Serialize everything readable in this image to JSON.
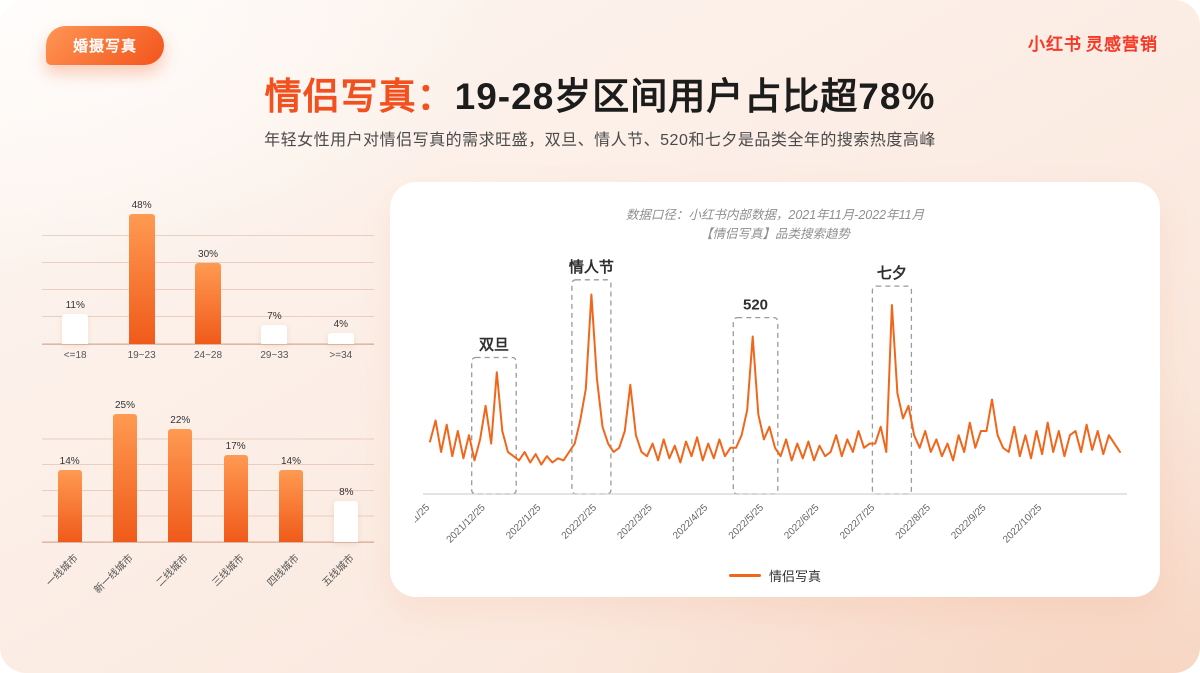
{
  "badge": {
    "label": "婚摄写真"
  },
  "logo": {
    "brand": "小红书",
    "suffix": "灵感营销"
  },
  "title": {
    "highlight": "情侣写真：",
    "rest": "19-28岁区间用户占比超78%"
  },
  "subtitle": "年轻女性用户对情侣写真的需求旺盛，双旦、情人节、520和七夕是品类全年的搜索热度高峰",
  "colors": {
    "accent": "#F2541B",
    "brand_red": "#F83726",
    "bar_orange_top": "#FF9A52",
    "bar_orange_bottom": "#F05A1A",
    "bar_white": "#FFFFFF",
    "line": "#F2661C"
  },
  "card": {
    "caption_line1": "数据口径：小红书内部数据，2021年11月-2022年11月",
    "caption_line2": "【情侣写真】品类搜索趋势",
    "legend": "情侣写真"
  },
  "chart_data": [
    {
      "type": "bar",
      "name": "age-distribution",
      "categories": [
        "<=18",
        "19~23",
        "24~28",
        "29~33",
        ">=34"
      ],
      "values": [
        11,
        48,
        30,
        7,
        4
      ],
      "value_labels": [
        "11%",
        "48%",
        "30%",
        "7%",
        "4%"
      ],
      "highlighted": [
        false,
        true,
        true,
        false,
        false
      ],
      "ylim": [
        0,
        50
      ],
      "grid": true
    },
    {
      "type": "bar",
      "name": "city-tier-distribution",
      "categories": [
        "一线城市",
        "新一线城市",
        "二线城市",
        "三线城市",
        "四线城市",
        "五线城市"
      ],
      "values": [
        14,
        25,
        22,
        17,
        14,
        8
      ],
      "value_labels": [
        "14%",
        "25%",
        "22%",
        "17%",
        "14%",
        "8%"
      ],
      "highlighted": [
        true,
        true,
        true,
        true,
        true,
        false
      ],
      "ylim": [
        0,
        25
      ],
      "grid": true,
      "rotated_labels": true
    },
    {
      "type": "line",
      "name": "couple-photo-search-trend",
      "title": "【情侣写真】品类搜索趋势",
      "legend": [
        "情侣写真"
      ],
      "ylim": [
        0,
        110
      ],
      "x_tick_labels": [
        "2021/11/25",
        "2021/12/25",
        "2022/1/25",
        "2022/2/25",
        "2022/3/25",
        "2022/4/25",
        "2022/5/25",
        "2022/6/25",
        "2022/7/25",
        "2022/8/25",
        "2022/9/25",
        "2022/10/25"
      ],
      "values": [
        25,
        35,
        20,
        33,
        18,
        30,
        17,
        28,
        16,
        26,
        42,
        24,
        58,
        30,
        20,
        18,
        16,
        20,
        15,
        19,
        14,
        18,
        15,
        17,
        16,
        20,
        24,
        35,
        50,
        95,
        55,
        32,
        24,
        20,
        22,
        30,
        52,
        28,
        20,
        18,
        24,
        16,
        26,
        17,
        23,
        15,
        25,
        18,
        27,
        16,
        24,
        17,
        26,
        18,
        22,
        22,
        28,
        40,
        75,
        38,
        26,
        32,
        22,
        18,
        26,
        16,
        24,
        17,
        25,
        16,
        23,
        18,
        20,
        28,
        18,
        26,
        20,
        30,
        22,
        24,
        24,
        32,
        20,
        90,
        48,
        36,
        42,
        28,
        22,
        30,
        20,
        26,
        18,
        24,
        16,
        28,
        20,
        34,
        22,
        30,
        30,
        45,
        28,
        22,
        20,
        32,
        18,
        28,
        17,
        30,
        19,
        34,
        20,
        30,
        18,
        28,
        30,
        20,
        33,
        21,
        30,
        19,
        28,
        24,
        20
      ],
      "annotations": [
        {
          "label": "双旦",
          "from": 7.5,
          "to": 15.5,
          "top": 65
        },
        {
          "label": "情人节",
          "from": 25.5,
          "to": 32.5,
          "top": 102
        },
        {
          "label": "520",
          "from": 54.5,
          "to": 62.5,
          "top": 84
        },
        {
          "label": "七夕",
          "from": 79.5,
          "to": 86.5,
          "top": 99
        }
      ]
    }
  ]
}
